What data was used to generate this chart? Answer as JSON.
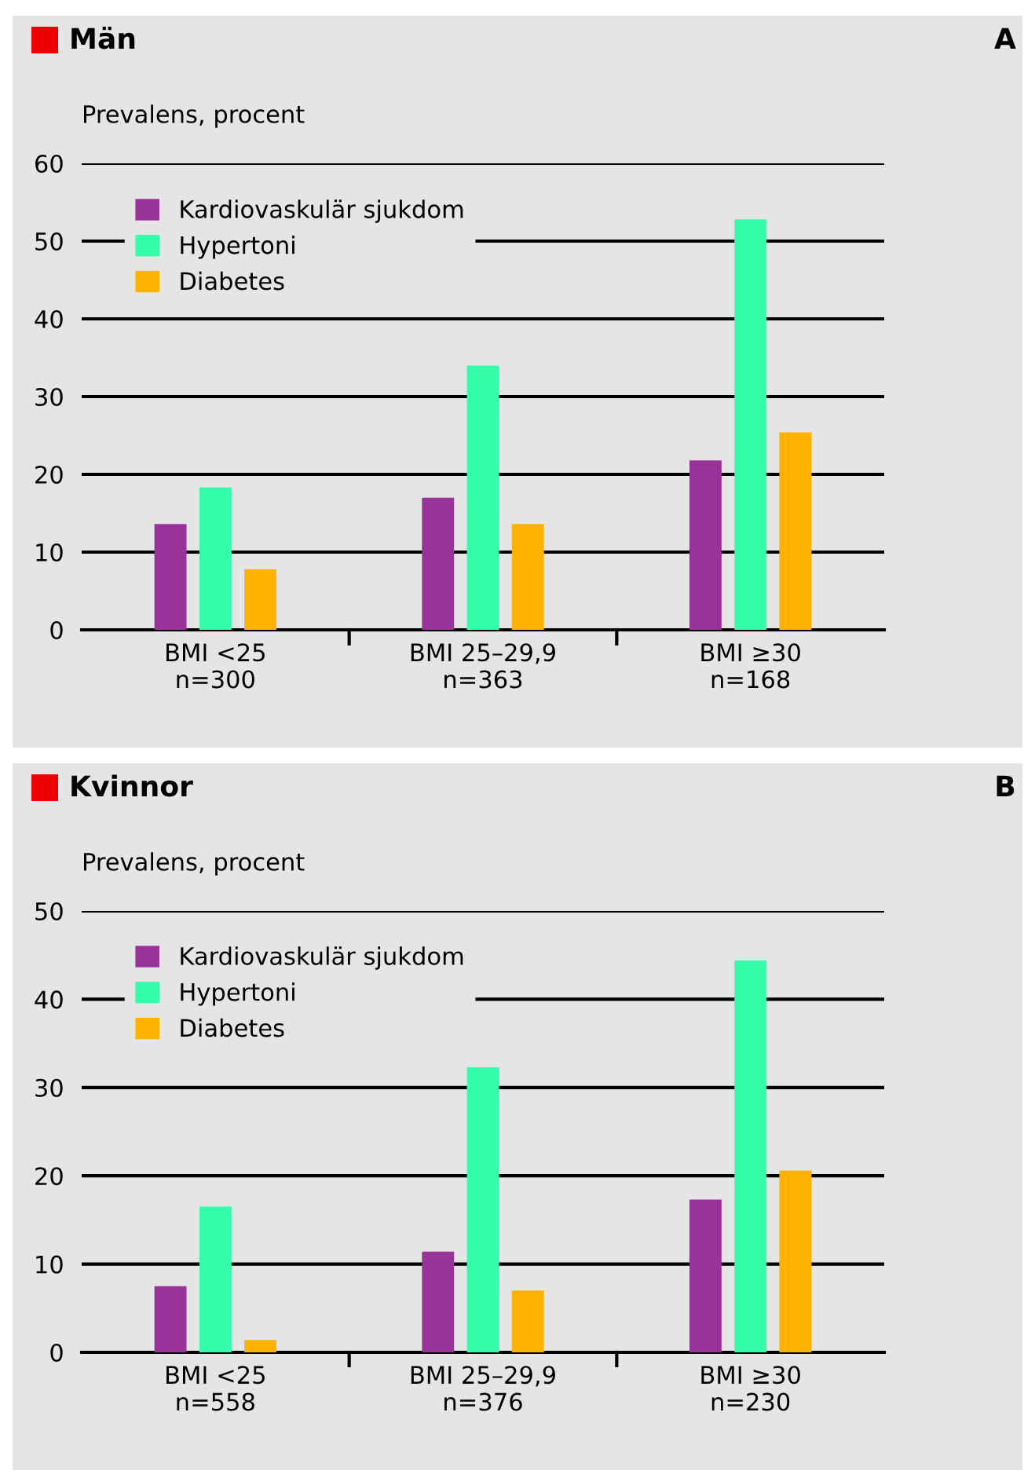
{
  "chart_data": [
    {
      "type": "bar",
      "title": "Män",
      "annotations": [
        "A"
      ],
      "ylabel": "Prevalens, procent",
      "categories": [
        "BMI <25\nn=300",
        "BMI 25–29,9\nn=363",
        "BMI ≥30\nn=168"
      ],
      "series": [
        {
          "name": "Kardiovaskulär sjukdom",
          "color": "#993399",
          "values": [
            13.6,
            17.0,
            21.8
          ]
        },
        {
          "name": "Hypertoni",
          "color": "#33ffaa",
          "values": [
            18.3,
            34.0,
            52.8
          ]
        },
        {
          "name": "Diabetes",
          "color": "#ffb300",
          "values": [
            7.8,
            13.6,
            25.4
          ]
        }
      ],
      "ylim": [
        0,
        60
      ],
      "yticks": [
        0,
        10,
        20,
        30,
        40,
        50,
        60
      ],
      "grid": "y",
      "legend": "top left"
    },
    {
      "type": "bar",
      "title": "Kvinnor",
      "annotations": [
        "B"
      ],
      "ylabel": "Prevalens, procent",
      "categories": [
        "BMI <25\nn=558",
        "BMI 25–29,9\nn=376",
        "BMI ≥30\nn=230"
      ],
      "series": [
        {
          "name": "Kardiovaskulär sjukdom",
          "color": "#993399",
          "values": [
            7.5,
            11.4,
            17.3
          ]
        },
        {
          "name": "Hypertoni",
          "color": "#33ffaa",
          "values": [
            16.5,
            32.3,
            44.4
          ]
        },
        {
          "name": "Diabetes",
          "color": "#ffb300",
          "values": [
            1.4,
            7.0,
            20.6
          ]
        }
      ],
      "ylim": [
        0,
        50
      ],
      "yticks": [
        0,
        10,
        20,
        30,
        40,
        50
      ],
      "grid": "y",
      "legend": "top left"
    }
  ]
}
